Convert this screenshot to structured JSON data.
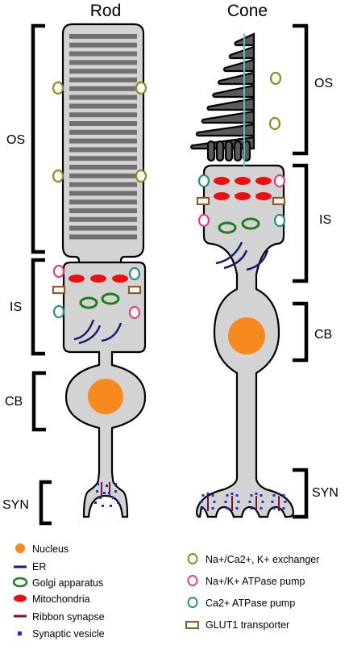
{
  "titles": {
    "rod": "Rod",
    "cone": "Cone"
  },
  "segments": {
    "rod": {
      "os": "OS",
      "is": "IS",
      "cb": "CB",
      "syn": "SYN"
    },
    "cone": {
      "os": "OS",
      "is": "IS",
      "cb": "CB",
      "syn": "SYN"
    }
  },
  "legend": {
    "left": [
      {
        "label": "Nucleus",
        "icon": "orange-dot"
      },
      {
        "label": "ER",
        "icon": "navy-line"
      },
      {
        "label": "Golgi apparatus",
        "icon": "green-ring"
      },
      {
        "label": "Mitochondria",
        "icon": "red-oval"
      },
      {
        "label": "Ribbon synapse",
        "icon": "maroon-line"
      },
      {
        "label": "Synaptic vesicle",
        "icon": "blue-square"
      }
    ],
    "right": [
      {
        "label": "Na+/Ca2+, K+ exchanger",
        "icon": "olive-ring"
      },
      {
        "label": "Na+/K+ ATPase pump",
        "icon": "pink-ring"
      },
      {
        "label": "Ca2+ ATPase pump",
        "icon": "teal-ring"
      },
      {
        "label": "GLUT1 transporter",
        "icon": "brown-rect"
      }
    ]
  },
  "colors": {
    "cell_fill": "#d3d3d3",
    "disc": "#707070",
    "cone_os": "#5a5a5a",
    "cilium": "#5bc0c0",
    "exchanger": "#8c8c1e",
    "atpase": "#e0408a",
    "ca_pump": "#2e8a8a",
    "glut1": "#8b5a2b",
    "mito": "#e81010",
    "golgi": "#1e7d1e",
    "er": "#1a1a6e",
    "nucleus": "#f7891e",
    "ribbon": "#7a1230",
    "vesicle": "#1a33cc"
  }
}
